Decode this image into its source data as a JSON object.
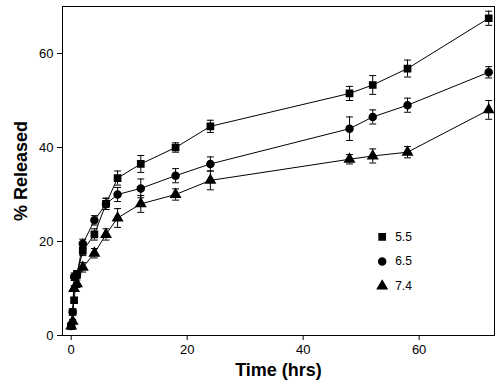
{
  "chart_data": {
    "type": "line",
    "x_label": "Time (hrs)",
    "y_label": "% Released",
    "x": [
      0,
      0.25,
      0.5,
      1,
      2,
      4,
      6,
      8,
      12,
      18,
      24,
      48,
      52,
      58,
      72
    ],
    "series": [
      {
        "name": "5.5",
        "color": "#000000",
        "marker": "square",
        "values": [
          2,
          5,
          7.5,
          13,
          18,
          21.5,
          28,
          33.5,
          36.5,
          40,
          44.5,
          51.5,
          53.3,
          56.8,
          67.5
        ],
        "errors": [
          0.3,
          0.5,
          0.6,
          0.8,
          1,
          1.2,
          1.2,
          1.5,
          1.8,
          1,
          1.3,
          1.5,
          2,
          1.8,
          1.5
        ]
      },
      {
        "name": "6.5",
        "color": "#000000",
        "marker": "circle",
        "values": [
          2,
          5,
          12.5,
          13,
          19.5,
          24.5,
          28,
          30,
          31.3,
          34,
          36.5,
          44,
          46.5,
          49,
          56
        ],
        "errors": [
          0.3,
          0.5,
          0.8,
          0.8,
          1,
          1,
          1.2,
          1.5,
          2,
          1.5,
          1.5,
          2.5,
          1.5,
          1.5,
          1.2
        ]
      },
      {
        "name": "7.4",
        "color": "#000000",
        "marker": "triangle",
        "values": [
          2,
          3,
          10,
          11,
          14.5,
          17.5,
          21.5,
          25,
          28,
          30,
          33,
          37.5,
          38.2,
          39,
          48
        ],
        "errors": [
          0.3,
          0.4,
          0.6,
          0.8,
          1,
          1,
          1.2,
          2,
          1.8,
          1.2,
          2,
          1,
          1.5,
          1.2,
          2
        ]
      }
    ],
    "xlim": [
      -1.5,
      73
    ],
    "ylim": [
      0,
      70
    ],
    "xticks": [
      0,
      20,
      40,
      60
    ],
    "yticks": [
      0,
      20,
      40,
      60
    ],
    "grid": false,
    "legend": "bottom-right"
  }
}
